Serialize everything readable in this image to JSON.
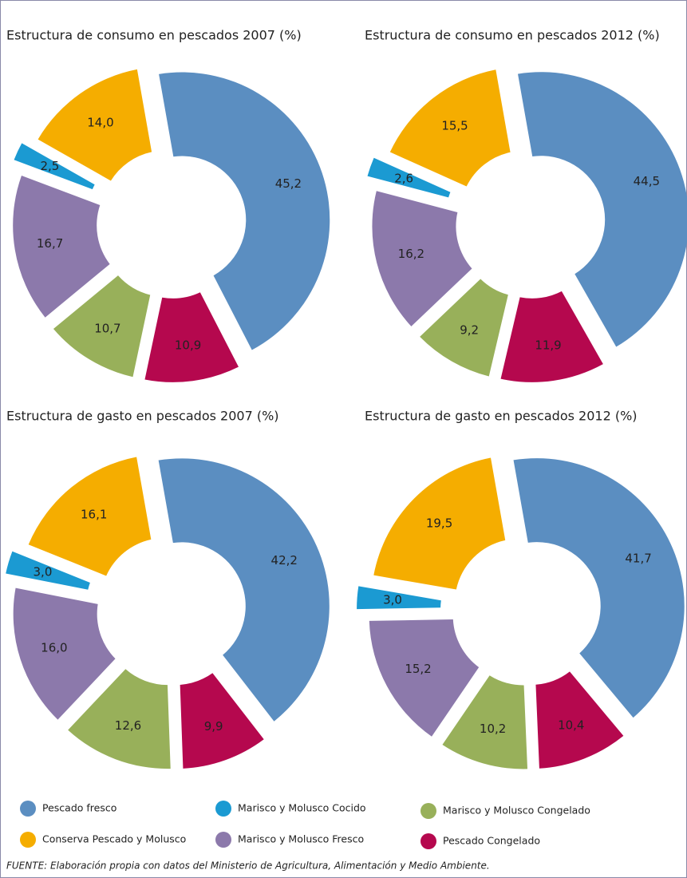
{
  "chart_data": [
    {
      "type": "pie",
      "donut": true,
      "title": "Estructura de consumo en pescados 2007 (%)",
      "categories": [
        "Pescado fresco",
        "Pescado Congelado",
        "Marisco y Molusco Congelado",
        "Marisco y Molusco Fresco",
        "Marisco y Molusco Cocido",
        "Conserva Pescado y Molusco"
      ],
      "values": [
        45.2,
        10.9,
        10.7,
        16.7,
        2.5,
        14.0
      ],
      "value_labels": [
        "45,2",
        "10,9",
        "10,7",
        "16,7",
        "2,5",
        "14,0"
      ],
      "colors": [
        "#5b8ec1",
        "#b5084e",
        "#98b05a",
        "#8c79ab",
        "#1b9ad2",
        "#f5ad00"
      ]
    },
    {
      "type": "pie",
      "donut": true,
      "title": "Estructura de consumo en pescados 2012 (%)",
      "categories": [
        "Pescado fresco",
        "Pescado Congelado",
        "Marisco y Molusco Congelado",
        "Marisco y Molusco Fresco",
        "Marisco y Molusco Cocido",
        "Conserva Pescado y Molusco"
      ],
      "values": [
        44.5,
        11.9,
        9.2,
        16.2,
        2.6,
        15.5
      ],
      "value_labels": [
        "44,5",
        "11,9",
        "9,2",
        "16,2",
        "2,6",
        "15,5"
      ],
      "colors": [
        "#5b8ec1",
        "#b5084e",
        "#98b05a",
        "#8c79ab",
        "#1b9ad2",
        "#f5ad00"
      ]
    },
    {
      "type": "pie",
      "donut": true,
      "title": "Estructura de gasto en pescados 2007 (%)",
      "categories": [
        "Pescado fresco",
        "Pescado Congelado",
        "Marisco y Molusco Congelado",
        "Marisco y Molusco Fresco",
        "Marisco y Molusco Cocido",
        "Conserva Pescado y Molusco"
      ],
      "values": [
        42.2,
        9.9,
        12.6,
        16.0,
        3.0,
        16.1
      ],
      "value_labels": [
        "42,2",
        "9,9",
        "12,6",
        "16,0",
        "3,0",
        "16,1"
      ],
      "colors": [
        "#5b8ec1",
        "#b5084e",
        "#98b05a",
        "#8c79ab",
        "#1b9ad2",
        "#f5ad00"
      ]
    },
    {
      "type": "pie",
      "donut": true,
      "title": "Estructura de gasto en pescados 2012 (%)",
      "categories": [
        "Pescado fresco",
        "Pescado Congelado",
        "Marisco y Molusco Congelado",
        "Marisco y Molusco Fresco",
        "Marisco y Molusco Cocido",
        "Conserva Pescado y Molusco"
      ],
      "values": [
        41.7,
        10.4,
        10.2,
        15.2,
        3.0,
        19.5
      ],
      "value_labels": [
        "41,7",
        "10,4",
        "10,2",
        "15,2",
        "3,0",
        "19,5"
      ],
      "colors": [
        "#5b8ec1",
        "#b5084e",
        "#98b05a",
        "#8c79ab",
        "#1b9ad2",
        "#f5ad00"
      ]
    }
  ],
  "source": "FUENTE: Elaboración propia con datos del Ministerio de Agricultura, Alimentación y Medio Ambiente."
}
